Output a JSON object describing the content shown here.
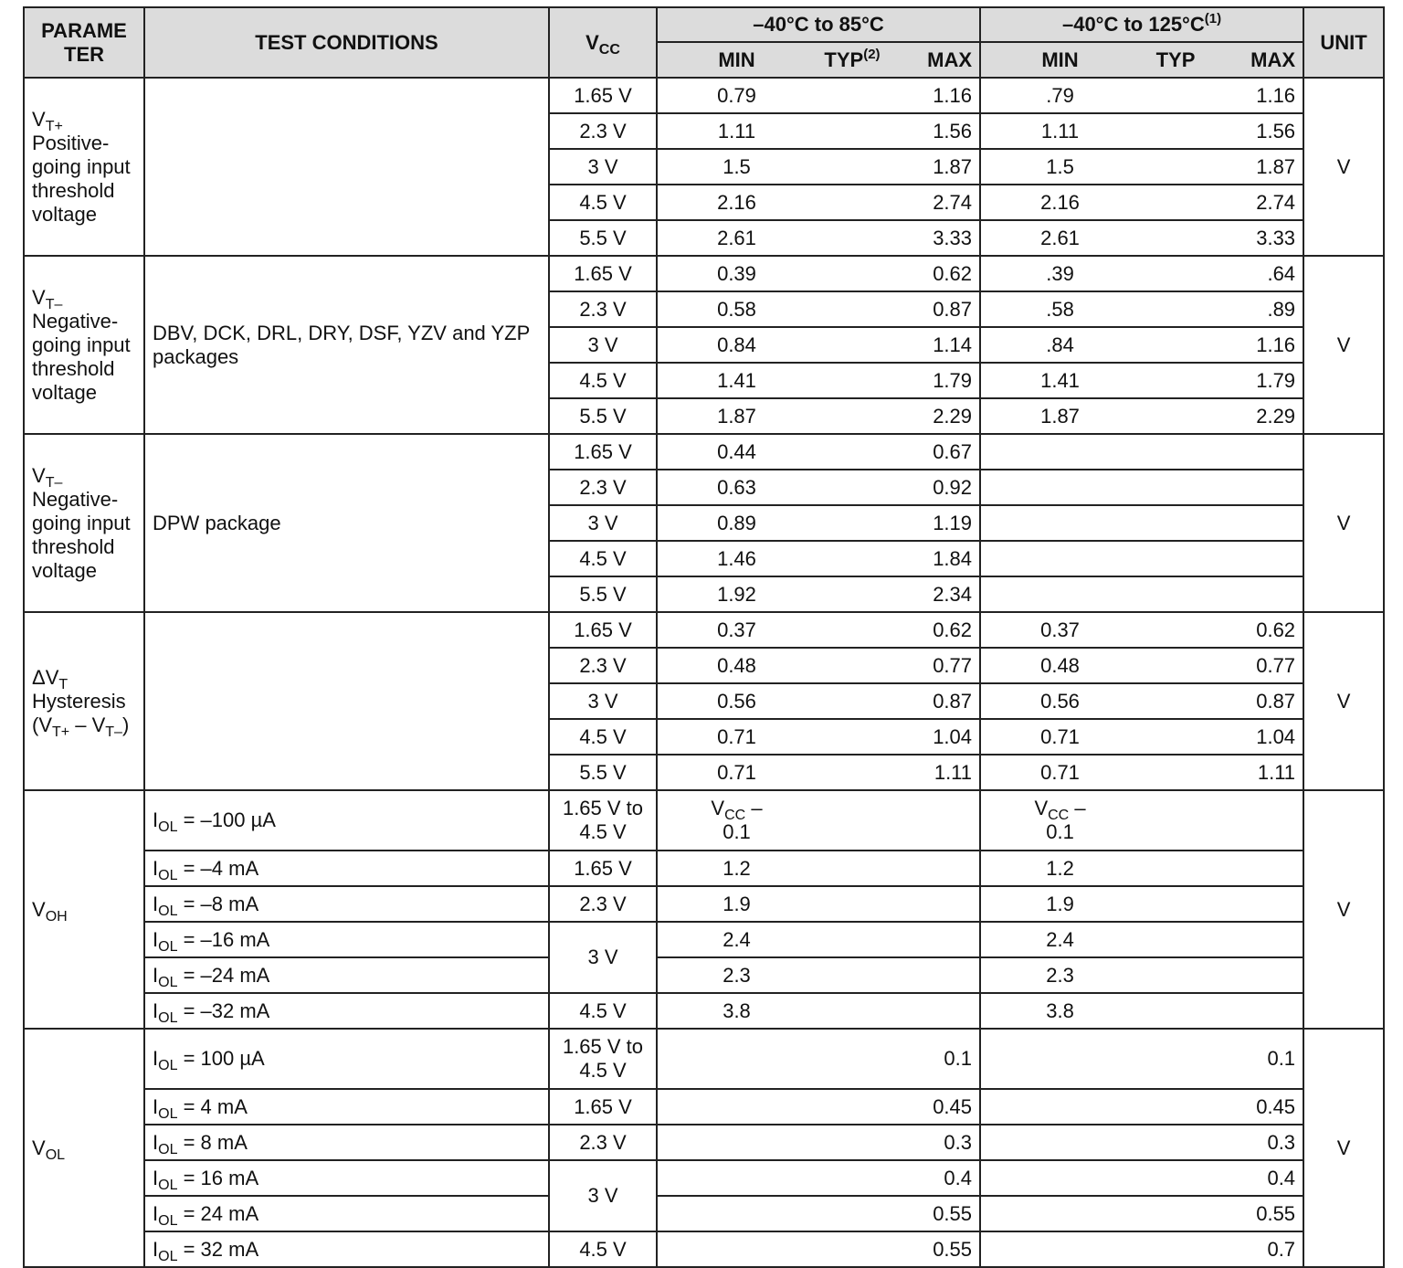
{
  "header": {
    "parameter": [
      "PARAME",
      "TER"
    ],
    "test_conditions": "TEST CONDITIONS",
    "vcc": [
      {
        "t": "V"
      },
      {
        "t": "CC",
        "s": "sub"
      }
    ],
    "range1": [
      {
        "t": "–40°C to 85°C"
      }
    ],
    "range2": [
      {
        "t": "–40°C to 125°C"
      },
      {
        "t": "(1)",
        "s": "sup"
      }
    ],
    "unit": "UNIT",
    "sub1": {
      "min": [
        {
          "t": "MIN"
        }
      ],
      "typ": [
        {
          "t": "TYP"
        },
        {
          "t": "(2)",
          "s": "sup"
        }
      ],
      "max": [
        {
          "t": "MAX"
        }
      ]
    },
    "sub2": {
      "min": [
        {
          "t": "MIN"
        }
      ],
      "typ": [
        {
          "t": "TYP"
        }
      ],
      "max": [
        {
          "t": "MAX"
        }
      ]
    }
  },
  "groups": [
    {
      "param": [
        {
          "t": "V"
        },
        {
          "t": "T+",
          "s": "sub"
        },
        {
          "t": " Positive-going input threshold voltage"
        }
      ],
      "cond": [
        {
          "t": ""
        }
      ],
      "unit": "V",
      "rows": [
        {
          "vcc": "1.65 V",
          "min1": "0.79",
          "max1": "1.16",
          "min2": ".79",
          "max2": "1.16"
        },
        {
          "vcc": "2.3 V",
          "min1": "1.11",
          "max1": "1.56",
          "min2": "1.11",
          "max2": "1.56"
        },
        {
          "vcc": "3 V",
          "min1": "1.5",
          "max1": "1.87",
          "min2": "1.5",
          "max2": "1.87"
        },
        {
          "vcc": "4.5 V",
          "min1": "2.16",
          "max1": "2.74",
          "min2": "2.16",
          "max2": "2.74"
        },
        {
          "vcc": "5.5 V",
          "min1": "2.61",
          "max1": "3.33",
          "min2": "2.61",
          "max2": "3.33"
        }
      ]
    },
    {
      "param": [
        {
          "t": "V"
        },
        {
          "t": "T–",
          "s": "sub"
        },
        {
          "t": " Negative-going input threshold voltage"
        }
      ],
      "cond": [
        {
          "t": "DBV, DCK, DRL, DRY, DSF, YZV and YZP packages"
        }
      ],
      "unit": "V",
      "rows": [
        {
          "vcc": "1.65 V",
          "min1": "0.39",
          "max1": "0.62",
          "min2": ".39",
          "max2": ".64"
        },
        {
          "vcc": "2.3 V",
          "min1": "0.58",
          "max1": "0.87",
          "min2": ".58",
          "max2": ".89"
        },
        {
          "vcc": "3 V",
          "min1": "0.84",
          "max1": "1.14",
          "min2": ".84",
          "max2": "1.16"
        },
        {
          "vcc": "4.5 V",
          "min1": "1.41",
          "max1": "1.79",
          "min2": "1.41",
          "max2": "1.79"
        },
        {
          "vcc": "5.5 V",
          "min1": "1.87",
          "max1": "2.29",
          "min2": "1.87",
          "max2": "2.29"
        }
      ]
    },
    {
      "param": [
        {
          "t": "V"
        },
        {
          "t": "T–",
          "s": "sub"
        },
        {
          "t": " Negative-going input threshold voltage"
        }
      ],
      "cond": [
        {
          "t": "DPW package"
        }
      ],
      "unit": "V",
      "rows": [
        {
          "vcc": "1.65 V",
          "min1": "0.44",
          "max1": "0.67"
        },
        {
          "vcc": "2.3 V",
          "min1": "0.63",
          "max1": "0.92"
        },
        {
          "vcc": "3 V",
          "min1": "0.89",
          "max1": "1.19"
        },
        {
          "vcc": "4.5 V",
          "min1": "1.46",
          "max1": "1.84"
        },
        {
          "vcc": "5.5 V",
          "min1": "1.92",
          "max1": "2.34"
        }
      ]
    },
    {
      "param": [
        {
          "t": "ΔV"
        },
        {
          "t": "T",
          "s": "sub"
        },
        {
          "t": " Hysteresis (V"
        },
        {
          "t": "T+",
          "s": "sub"
        },
        {
          "t": " – V"
        },
        {
          "t": "T–",
          "s": "sub"
        },
        {
          "t": ")"
        }
      ],
      "cond": [
        {
          "t": ""
        }
      ],
      "unit": "V",
      "rows": [
        {
          "vcc": "1.65 V",
          "min1": "0.37",
          "max1": "0.62",
          "min2": "0.37",
          "max2": "0.62"
        },
        {
          "vcc": "2.3 V",
          "min1": "0.48",
          "max1": "0.77",
          "min2": "0.48",
          "max2": "0.77"
        },
        {
          "vcc": "3 V",
          "min1": "0.56",
          "max1": "0.87",
          "min2": "0.56",
          "max2": "0.87"
        },
        {
          "vcc": "4.5 V",
          "min1": "0.71",
          "max1": "1.04",
          "min2": "0.71",
          "max2": "1.04"
        },
        {
          "vcc": "5.5 V",
          "min1": "0.71",
          "max1": "1.11",
          "min2": "0.71",
          "max2": "1.11"
        }
      ]
    },
    {
      "param": [
        {
          "t": "V"
        },
        {
          "t": "OH",
          "s": "sub"
        }
      ],
      "unit": "V",
      "rows": [
        {
          "tall": true,
          "cond": [
            {
              "t": "I"
            },
            {
              "t": "OL",
              "s": "sub"
            },
            {
              "t": " = –100 µA"
            }
          ],
          "vcc": "1.65 V to\n4.5 V",
          "min1": [
            {
              "t": "V"
            },
            {
              "t": "CC",
              "s": "sub"
            },
            {
              "t": " –\n0.1"
            }
          ],
          "min2": [
            {
              "t": "V"
            },
            {
              "t": "CC",
              "s": "sub"
            },
            {
              "t": " –\n0.1"
            }
          ]
        },
        {
          "cond": [
            {
              "t": "I"
            },
            {
              "t": "OL",
              "s": "sub"
            },
            {
              "t": " = –4 mA"
            }
          ],
          "vcc": "1.65 V",
          "min1": "1.2",
          "min2": "1.2"
        },
        {
          "cond": [
            {
              "t": "I"
            },
            {
              "t": "OL",
              "s": "sub"
            },
            {
              "t": " = –8 mA"
            }
          ],
          "vcc": "2.3 V",
          "min1": "1.9",
          "min2": "1.9"
        },
        {
          "cond": [
            {
              "t": "I"
            },
            {
              "t": "OL",
              "s": "sub"
            },
            {
              "t": " = –16 mA"
            }
          ],
          "vcc": "3 V",
          "vcc_span": 2,
          "min1": "2.4",
          "min2": "2.4"
        },
        {
          "cond": [
            {
              "t": "I"
            },
            {
              "t": "OL",
              "s": "sub"
            },
            {
              "t": " = –24 mA"
            }
          ],
          "min1": "2.3",
          "min2": "2.3"
        },
        {
          "cond": [
            {
              "t": "I"
            },
            {
              "t": "OL",
              "s": "sub"
            },
            {
              "t": " = –32 mA"
            }
          ],
          "vcc": "4.5 V",
          "min1": "3.8",
          "min2": "3.8"
        }
      ]
    },
    {
      "param": [
        {
          "t": "V"
        },
        {
          "t": "OL",
          "s": "sub"
        }
      ],
      "unit": "V",
      "rows": [
        {
          "tall": true,
          "cond": [
            {
              "t": "I"
            },
            {
              "t": "OL",
              "s": "sub"
            },
            {
              "t": " = 100 µA"
            }
          ],
          "vcc": "1.65 V to\n4.5 V",
          "max1": "0.1",
          "max2": "0.1"
        },
        {
          "cond": [
            {
              "t": "I"
            },
            {
              "t": "OL",
              "s": "sub"
            },
            {
              "t": " = 4 mA"
            }
          ],
          "vcc": "1.65 V",
          "max1": "0.45",
          "max2": "0.45"
        },
        {
          "cond": [
            {
              "t": "I"
            },
            {
              "t": "OL",
              "s": "sub"
            },
            {
              "t": " = 8 mA"
            }
          ],
          "vcc": "2.3 V",
          "max1": "0.3",
          "max2": "0.3"
        },
        {
          "cond": [
            {
              "t": "I"
            },
            {
              "t": "OL",
              "s": "sub"
            },
            {
              "t": " = 16 mA"
            }
          ],
          "vcc": "3 V",
          "vcc_span": 2,
          "max1": "0.4",
          "max2": "0.4"
        },
        {
          "cond": [
            {
              "t": "I"
            },
            {
              "t": "OL",
              "s": "sub"
            },
            {
              "t": " = 24 mA"
            }
          ],
          "max1": "0.55",
          "max2": "0.55"
        },
        {
          "cond": [
            {
              "t": "I"
            },
            {
              "t": "OL",
              "s": "sub"
            },
            {
              "t": " = 32 mA"
            }
          ],
          "vcc": "4.5 V",
          "max1": "0.55",
          "max2": "0.7"
        }
      ]
    }
  ]
}
